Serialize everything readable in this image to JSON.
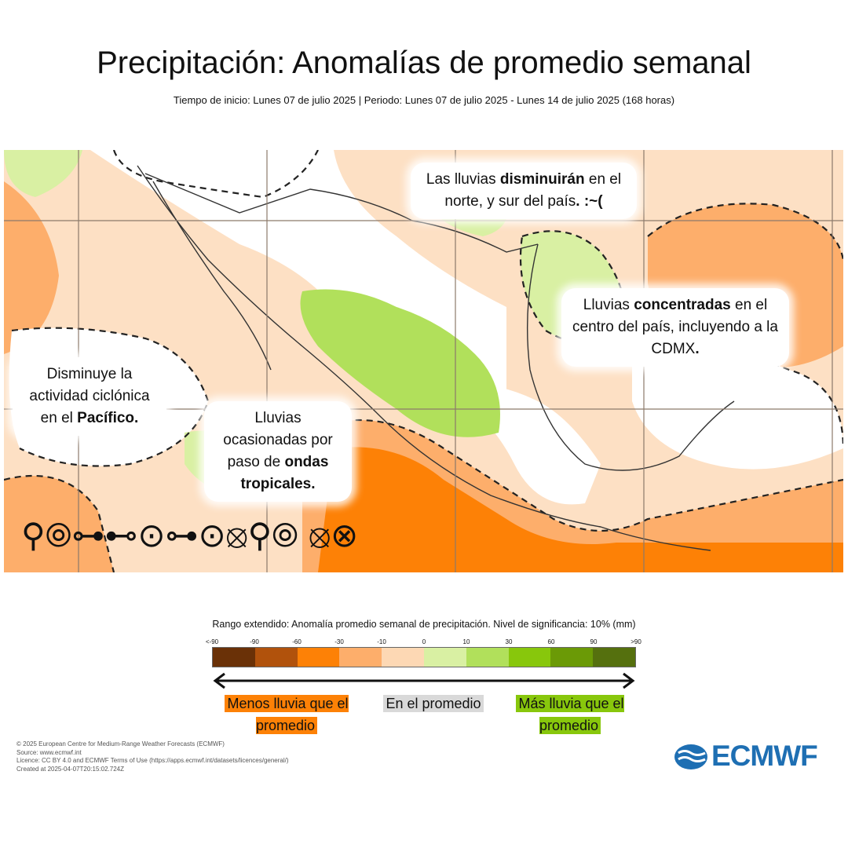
{
  "title": "Precipitación: Anomalías de promedio semanal",
  "subtitle": "Tiempo de inicio: Lunes 07 de julio 2025 | Periodo: Lunes 07 de julio 2025 - Lunes 14 de julio 2025 (168 horas)",
  "annotations": {
    "north": {
      "pre": "Las lluvias ",
      "bold": "disminuirán",
      "post": " en el norte, y sur del país",
      "tail": ". :~("
    },
    "center": {
      "pre": "Lluvias ",
      "bold": "concentradas",
      "post": " en el centro del país, incluyendo a la CDMX",
      "tail": "."
    },
    "pacific": {
      "pre": "Disminuye la actividad ciclónica en el ",
      "bold": "Pacífico.",
      "post": ""
    },
    "waves": {
      "pre": "Lluvias ocasionadas por paso de ",
      "bold": "ondas tropicales.",
      "post": ""
    }
  },
  "legend": {
    "title": "Rango extendido: Anomalía promedio semanal de precipitación. Nivel de significancia: 10% (mm)",
    "ticks": [
      "<-90",
      "-90",
      "-60",
      "-30",
      "-10",
      "0",
      "10",
      "30",
      "60",
      "90",
      ">90"
    ],
    "colors": [
      "#6a3107",
      "#b1520c",
      "#fd8106",
      "#fdae6b",
      "#fdd8b4",
      "#d9f0a3",
      "#b1e05b",
      "#88c70c",
      "#6b9a06",
      "#55700e"
    ],
    "less": "Menos lluvia que el promedio",
    "avg": "En el promedio",
    "more": "Más lluvia que el promedio",
    "less_color": "#fd8106",
    "avg_color": "#d9d9d9",
    "more_color": "#88c70c"
  },
  "cyclone_symbols": "⚲⦾⊶⊷⊙⊶⊙⦻⚲⦾ ⦻⊗",
  "footer": {
    "line1": "© 2025 European Centre for Medium-Range Weather Forecasts (ECMWF)",
    "line2": "Source: www.ecmwf.int",
    "line3": "Licence: CC BY 4.0 and ECMWF Terms of Use (https://apps.ecmwf.int/datasets/licences/general/)",
    "line4": "Created at 2025-04-07T20:15:02.724Z"
  },
  "logo_text": "ECMWF"
}
